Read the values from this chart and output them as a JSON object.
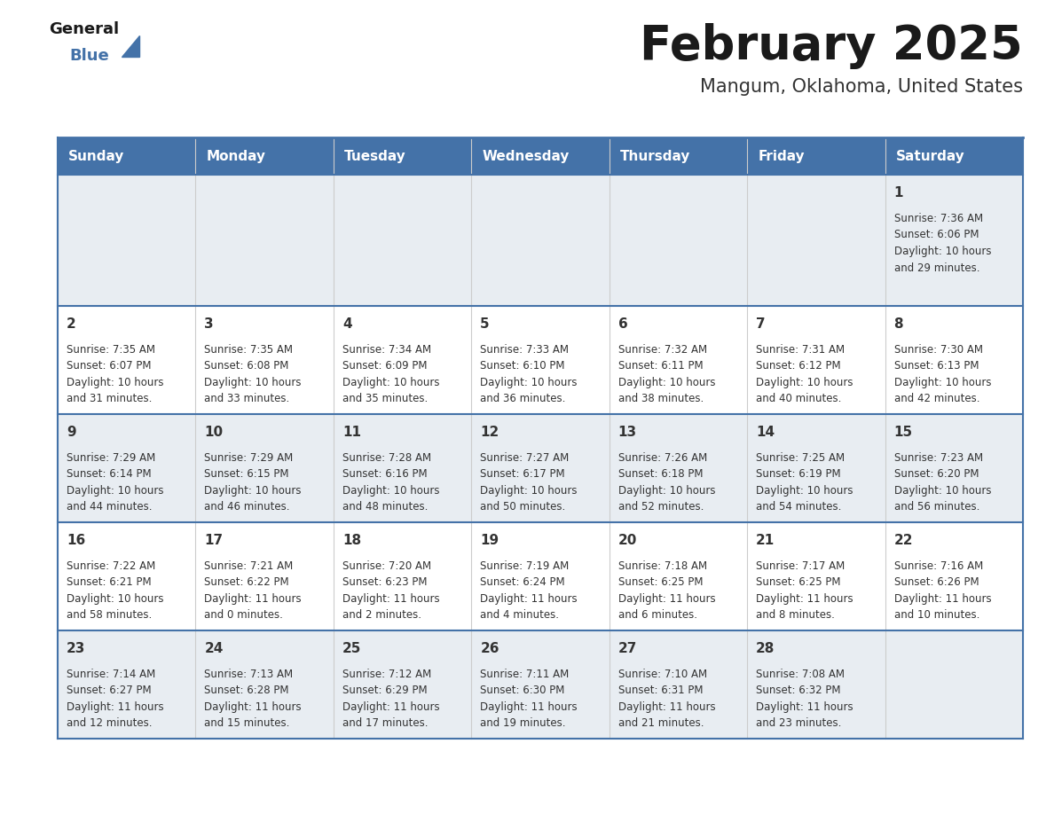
{
  "title": "February 2025",
  "subtitle": "Mangum, Oklahoma, United States",
  "days_of_week": [
    "Sunday",
    "Monday",
    "Tuesday",
    "Wednesday",
    "Thursday",
    "Friday",
    "Saturday"
  ],
  "header_bg": "#4472a8",
  "header_text": "#ffffff",
  "row_bg_odd": "#e8edf2",
  "row_bg_even": "#ffffff",
  "border_color": "#4472a8",
  "text_color": "#333333",
  "title_color": "#1a1a1a",
  "subtitle_color": "#333333",
  "logo_general_color": "#1a1a1a",
  "logo_blue_color": "#4472a8",
  "calendar": [
    [
      null,
      null,
      null,
      null,
      null,
      null,
      {
        "day": 1,
        "sunrise": "7:36 AM",
        "sunset": "6:06 PM",
        "daylight": "10 hours",
        "daylight2": "and 29 minutes."
      }
    ],
    [
      {
        "day": 2,
        "sunrise": "7:35 AM",
        "sunset": "6:07 PM",
        "daylight": "10 hours",
        "daylight2": "and 31 minutes."
      },
      {
        "day": 3,
        "sunrise": "7:35 AM",
        "sunset": "6:08 PM",
        "daylight": "10 hours",
        "daylight2": "and 33 minutes."
      },
      {
        "day": 4,
        "sunrise": "7:34 AM",
        "sunset": "6:09 PM",
        "daylight": "10 hours",
        "daylight2": "and 35 minutes."
      },
      {
        "day": 5,
        "sunrise": "7:33 AM",
        "sunset": "6:10 PM",
        "daylight": "10 hours",
        "daylight2": "and 36 minutes."
      },
      {
        "day": 6,
        "sunrise": "7:32 AM",
        "sunset": "6:11 PM",
        "daylight": "10 hours",
        "daylight2": "and 38 minutes."
      },
      {
        "day": 7,
        "sunrise": "7:31 AM",
        "sunset": "6:12 PM",
        "daylight": "10 hours",
        "daylight2": "and 40 minutes."
      },
      {
        "day": 8,
        "sunrise": "7:30 AM",
        "sunset": "6:13 PM",
        "daylight": "10 hours",
        "daylight2": "and 42 minutes."
      }
    ],
    [
      {
        "day": 9,
        "sunrise": "7:29 AM",
        "sunset": "6:14 PM",
        "daylight": "10 hours",
        "daylight2": "and 44 minutes."
      },
      {
        "day": 10,
        "sunrise": "7:29 AM",
        "sunset": "6:15 PM",
        "daylight": "10 hours",
        "daylight2": "and 46 minutes."
      },
      {
        "day": 11,
        "sunrise": "7:28 AM",
        "sunset": "6:16 PM",
        "daylight": "10 hours",
        "daylight2": "and 48 minutes."
      },
      {
        "day": 12,
        "sunrise": "7:27 AM",
        "sunset": "6:17 PM",
        "daylight": "10 hours",
        "daylight2": "and 50 minutes."
      },
      {
        "day": 13,
        "sunrise": "7:26 AM",
        "sunset": "6:18 PM",
        "daylight": "10 hours",
        "daylight2": "and 52 minutes."
      },
      {
        "day": 14,
        "sunrise": "7:25 AM",
        "sunset": "6:19 PM",
        "daylight": "10 hours",
        "daylight2": "and 54 minutes."
      },
      {
        "day": 15,
        "sunrise": "7:23 AM",
        "sunset": "6:20 PM",
        "daylight": "10 hours",
        "daylight2": "and 56 minutes."
      }
    ],
    [
      {
        "day": 16,
        "sunrise": "7:22 AM",
        "sunset": "6:21 PM",
        "daylight": "10 hours",
        "daylight2": "and 58 minutes."
      },
      {
        "day": 17,
        "sunrise": "7:21 AM",
        "sunset": "6:22 PM",
        "daylight": "11 hours",
        "daylight2": "and 0 minutes."
      },
      {
        "day": 18,
        "sunrise": "7:20 AM",
        "sunset": "6:23 PM",
        "daylight": "11 hours",
        "daylight2": "and 2 minutes."
      },
      {
        "day": 19,
        "sunrise": "7:19 AM",
        "sunset": "6:24 PM",
        "daylight": "11 hours",
        "daylight2": "and 4 minutes."
      },
      {
        "day": 20,
        "sunrise": "7:18 AM",
        "sunset": "6:25 PM",
        "daylight": "11 hours",
        "daylight2": "and 6 minutes."
      },
      {
        "day": 21,
        "sunrise": "7:17 AM",
        "sunset": "6:25 PM",
        "daylight": "11 hours",
        "daylight2": "and 8 minutes."
      },
      {
        "day": 22,
        "sunrise": "7:16 AM",
        "sunset": "6:26 PM",
        "daylight": "11 hours",
        "daylight2": "and 10 minutes."
      }
    ],
    [
      {
        "day": 23,
        "sunrise": "7:14 AM",
        "sunset": "6:27 PM",
        "daylight": "11 hours",
        "daylight2": "and 12 minutes."
      },
      {
        "day": 24,
        "sunrise": "7:13 AM",
        "sunset": "6:28 PM",
        "daylight": "11 hours",
        "daylight2": "and 15 minutes."
      },
      {
        "day": 25,
        "sunrise": "7:12 AM",
        "sunset": "6:29 PM",
        "daylight": "11 hours",
        "daylight2": "and 17 minutes."
      },
      {
        "day": 26,
        "sunrise": "7:11 AM",
        "sunset": "6:30 PM",
        "daylight": "11 hours",
        "daylight2": "and 19 minutes."
      },
      {
        "day": 27,
        "sunrise": "7:10 AM",
        "sunset": "6:31 PM",
        "daylight": "11 hours",
        "daylight2": "and 21 minutes."
      },
      {
        "day": 28,
        "sunrise": "7:08 AM",
        "sunset": "6:32 PM",
        "daylight": "11 hours",
        "daylight2": "and 23 minutes."
      },
      null
    ]
  ]
}
